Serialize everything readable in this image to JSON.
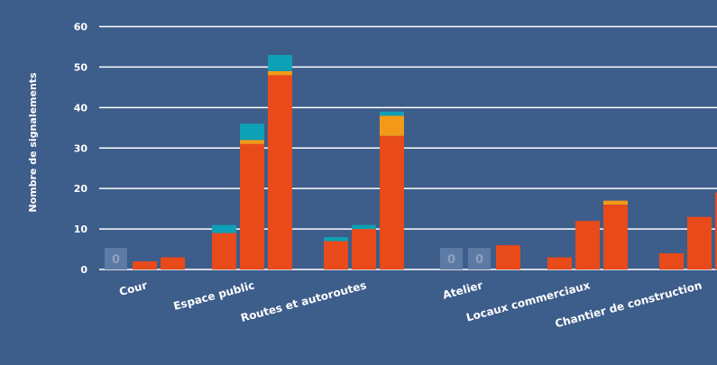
{
  "chart_data": {
    "type": "bar",
    "stacked": true,
    "title": "",
    "xlabel": "",
    "ylabel": "Nombre de signalements",
    "ylim": [
      0,
      60
    ],
    "yticks": [
      0,
      10,
      20,
      30,
      40,
      50,
      60
    ],
    "grid": true,
    "legend": "none",
    "colors": {
      "background": "#3d5d8a",
      "grid": "#ffffff",
      "segment_1": "#e84a1a",
      "segment_2": "#f29a17",
      "segment_3": "#0ea0b4",
      "zero_box": "#5c7aa3",
      "zero_text": "#8da2bf",
      "text": "#ffffff"
    },
    "groups": [
      {
        "category": "Cour",
        "bars": [
          {
            "zero_label": "0",
            "segments": [
              0,
              0,
              0
            ]
          },
          {
            "segments": [
              2,
              0,
              0
            ]
          },
          {
            "segments": [
              3,
              0,
              0
            ]
          }
        ]
      },
      {
        "category": "Espace public",
        "bars": [
          {
            "segments": [
              9,
              0,
              2
            ]
          },
          {
            "segments": [
              31,
              1,
              4
            ]
          },
          {
            "segments": [
              48,
              1,
              4
            ]
          }
        ]
      },
      {
        "category": "Routes et autoroutes",
        "bars": [
          {
            "segments": [
              7,
              0,
              1
            ]
          },
          {
            "segments": [
              10,
              0,
              1
            ]
          },
          {
            "segments": [
              33,
              5,
              1
            ]
          }
        ]
      },
      {
        "category": "Atelier",
        "bars": [
          {
            "zero_label": "0",
            "segments": [
              0,
              0,
              0
            ]
          },
          {
            "zero_label": "0",
            "segments": [
              0,
              0,
              0
            ]
          },
          {
            "segments": [
              6,
              0,
              0
            ]
          }
        ]
      },
      {
        "category": "Locaux commerciaux",
        "bars": [
          {
            "segments": [
              3,
              0,
              0
            ]
          },
          {
            "segments": [
              12,
              0,
              0
            ]
          },
          {
            "segments": [
              16,
              1,
              0
            ]
          }
        ]
      },
      {
        "category": "Chantier de construction",
        "bars": [
          {
            "segments": [
              4,
              0,
              0
            ]
          },
          {
            "segments": [
              13,
              0,
              0
            ]
          },
          {
            "segments": [
              19,
              0,
              0
            ]
          }
        ]
      }
    ]
  }
}
